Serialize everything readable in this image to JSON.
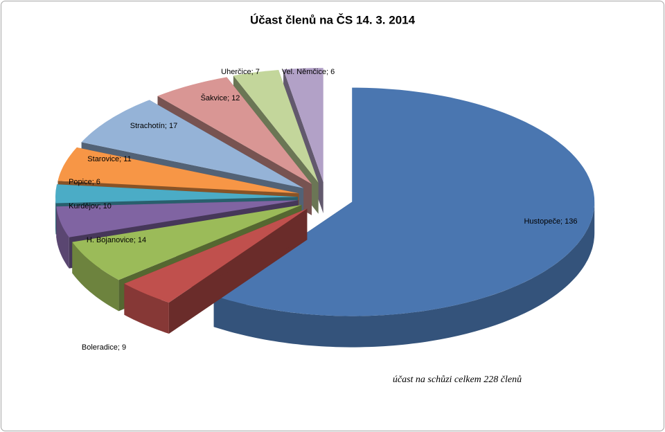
{
  "chart_data": {
    "type": "pie3d",
    "title": "Účast členů na ČS 14. 3. 2014",
    "annotation": "účast  na schůzi celkem 228 členů",
    "categories": [
      "Hustopeče",
      "Boleradice",
      "H. Bojanovice",
      "Kurdějov",
      "Popice",
      "Starovice",
      "Strachotín",
      "Šakvice",
      "Uherčice",
      "Vel. Němčice"
    ],
    "values": [
      136,
      9,
      14,
      10,
      6,
      11,
      17,
      12,
      7,
      6
    ],
    "value_labels": [
      "Hustopeče; 136",
      "Boleradice; 9",
      "H. Bojanovice; 14",
      "Kurdějov; 10",
      "Popice; 6",
      "Starovice; 11",
      "Strachotín; 17",
      "Šakvice; 12",
      "Uherčice; 7",
      "Vel. Němčice; 6"
    ],
    "colors": [
      "#4a76b0",
      "#c0504d",
      "#9bbb59",
      "#8064a2",
      "#4bacc6",
      "#f79646",
      "#95b3d7",
      "#d99694",
      "#c3d69b",
      "#b2a1c7"
    ]
  }
}
